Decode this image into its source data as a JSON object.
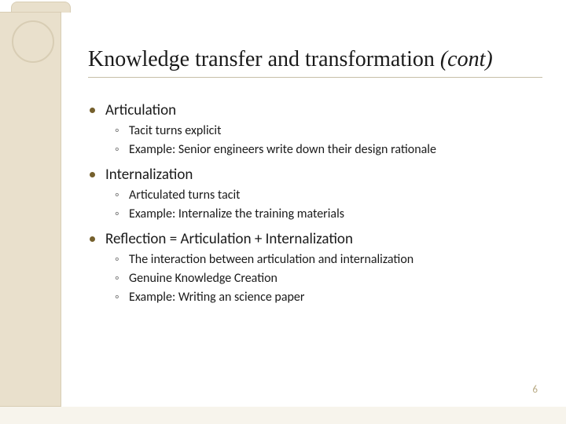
{
  "colors": {
    "side_band_bg": "#e9e0cc",
    "side_band_border": "#d8cdb4",
    "bottom_band_bg": "#f7f4ec",
    "title_underline": "#c7bfa7",
    "bullet_l1": "#75602d",
    "bullet_l2": "#7a7a7a",
    "text": "#1a1a1a",
    "page_num": "#b9ab85",
    "background": "#ffffff"
  },
  "typography": {
    "title_font": "Garamond",
    "title_size_pt": 21,
    "body_font": "Gill Sans",
    "l1_size_pt": 14,
    "l2_size_pt": 12
  },
  "title": {
    "main": "Knowledge transfer and transformation ",
    "italic": "(cont)"
  },
  "sections": [
    {
      "heading": "Articulation",
      "subs": [
        "Tacit turns explicit",
        "Example:   Senior engineers write down their design rationale"
      ]
    },
    {
      "heading": "Internalization",
      "subs": [
        "Articulated turns tacit",
        "Example:   Internalize the training materials"
      ]
    },
    {
      "heading": "Reflection = Articulation + Internalization",
      "subs": [
        "The interaction between articulation and internalization",
        "Genuine Knowledge Creation",
        "Example:   Writing an science paper"
      ]
    }
  ],
  "page_number": "6"
}
